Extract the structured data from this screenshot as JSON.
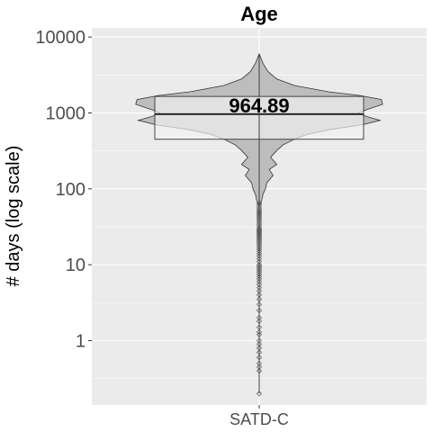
{
  "chart_data": {
    "type": "violin",
    "title": "Age",
    "xlabel": "",
    "ylabel": "# days (log scale)",
    "y_scale": "log10",
    "ylim": [
      0.15,
      10000
    ],
    "y_ticks": [
      1,
      10,
      100,
      1000,
      10000
    ],
    "y_tick_labels": [
      "1",
      "10",
      "100",
      "1000",
      "10000"
    ],
    "categories": [
      "SATD-C"
    ],
    "grid": true,
    "series": [
      {
        "category": "SATD-C",
        "box": {
          "q1": 450,
          "median": 964.89,
          "q3": 1650
        },
        "median_label": "964.89",
        "whisker": {
          "min": 0.2,
          "max": 6000
        },
        "density_profile": [
          [
            6000,
            0.0
          ],
          [
            4500,
            0.03
          ],
          [
            3500,
            0.07
          ],
          [
            2800,
            0.14
          ],
          [
            2300,
            0.28
          ],
          [
            1900,
            0.55
          ],
          [
            1700,
            0.8
          ],
          [
            1500,
            0.97
          ],
          [
            1300,
            0.98
          ],
          [
            1100,
            0.85
          ],
          [
            1000,
            0.79
          ],
          [
            900,
            0.85
          ],
          [
            800,
            0.96
          ],
          [
            700,
            0.82
          ],
          [
            600,
            0.55
          ],
          [
            520,
            0.38
          ],
          [
            450,
            0.28
          ],
          [
            380,
            0.19
          ],
          [
            320,
            0.14
          ],
          [
            260,
            0.09
          ],
          [
            210,
            0.14
          ],
          [
            180,
            0.08
          ],
          [
            150,
            0.11
          ],
          [
            120,
            0.06
          ],
          [
            100,
            0.05
          ],
          [
            85,
            0.03
          ],
          [
            70,
            0.02
          ],
          [
            60,
            0.0
          ]
        ],
        "outliers": [
          65,
          62,
          58,
          55,
          52,
          50,
          48,
          46,
          44,
          42,
          40,
          38,
          36,
          34,
          32,
          30,
          29,
          28,
          27,
          26,
          25,
          24,
          23,
          22,
          21,
          20,
          19,
          18,
          17,
          16,
          15,
          14,
          13,
          12,
          11,
          10,
          9.5,
          9,
          8.5,
          8,
          7.5,
          7,
          6.5,
          6,
          5.5,
          5,
          4.5,
          4,
          3.5,
          3,
          2.5,
          2,
          1.8,
          1.5,
          1.3,
          1.2,
          1.0,
          0.9,
          0.8,
          0.7,
          0.6,
          0.5,
          0.45,
          0.4,
          0.2
        ]
      }
    ]
  },
  "colors": {
    "panel_bg": "#ebebeb",
    "grid_major": "#ffffff",
    "violin_fill": "#bdbdbd",
    "box_fill": "#f2f2f2",
    "line": "#333333",
    "tick_text": "#4d4d4d"
  }
}
